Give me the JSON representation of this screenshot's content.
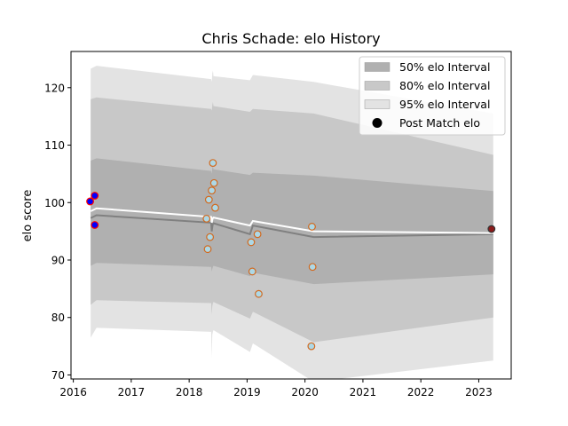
{
  "chart_data": {
    "type": "line",
    "title": "Chris Schade: elo History",
    "xlabel": "",
    "ylabel": "elo score",
    "xlim": [
      2015.96,
      2023.56
    ],
    "ylim": [
      69.3,
      126.3
    ],
    "x_ticks": [
      2016,
      2017,
      2018,
      2019,
      2020,
      2021,
      2022,
      2023
    ],
    "y_ticks": [
      70,
      80,
      90,
      100,
      110,
      120
    ],
    "grid": false,
    "legend_position": "top-right",
    "legend": [
      {
        "label": "50% elo Interval",
        "kind": "band",
        "color": "#b0b0b0"
      },
      {
        "label": "80% elo Interval",
        "kind": "band",
        "color": "#c8c8c8"
      },
      {
        "label": "95% elo Interval",
        "kind": "band",
        "color": "#e3e3e3"
      },
      {
        "label": "Post Match elo",
        "kind": "marker",
        "color": "#000000"
      }
    ],
    "bands": [
      {
        "name": "95% elo Interval",
        "color": "#e3e3e3",
        "x": [
          2016.3,
          2016.4,
          2018.38,
          2018.39,
          2018.4,
          2018.41,
          2018.42,
          2019.05,
          2019.1,
          2020.15,
          2023.25
        ],
        "upper": [
          123.3,
          123.8,
          121.5,
          121.0,
          122.5,
          123.0,
          122.0,
          121.3,
          122.2,
          121.0,
          115.5
        ],
        "lower": [
          76.5,
          78.2,
          77.5,
          73.0,
          77.0,
          77.5,
          77.8,
          74.0,
          75.5,
          68.8,
          72.5
        ]
      },
      {
        "name": "80% elo Interval",
        "color": "#c8c8c8",
        "x": [
          2016.3,
          2016.4,
          2018.38,
          2018.39,
          2018.4,
          2018.41,
          2018.42,
          2019.05,
          2019.1,
          2020.15,
          2023.25
        ],
        "upper": [
          118.0,
          118.3,
          116.3,
          116.0,
          117.0,
          117.5,
          116.8,
          115.8,
          116.3,
          115.5,
          108.3
        ],
        "lower": [
          82.2,
          83.0,
          82.5,
          80.5,
          82.0,
          82.5,
          82.7,
          79.8,
          81.0,
          75.7,
          80.0
        ]
      },
      {
        "name": "50% elo Interval",
        "color": "#b0b0b0",
        "x": [
          2016.3,
          2016.4,
          2018.38,
          2018.39,
          2018.4,
          2018.41,
          2018.42,
          2019.05,
          2019.1,
          2020.15,
          2023.25
        ],
        "upper": [
          107.3,
          107.7,
          105.5,
          105.0,
          106.0,
          106.3,
          105.8,
          104.8,
          105.2,
          104.7,
          102.0
        ],
        "lower": [
          89.0,
          89.5,
          88.8,
          88.0,
          88.5,
          88.8,
          89.0,
          87.2,
          87.8,
          85.8,
          87.5
        ]
      }
    ],
    "lines": [
      {
        "name": "median",
        "color": "#808080",
        "x": [
          2016.3,
          2016.4,
          2018.38,
          2018.39,
          2018.4,
          2018.41,
          2018.42,
          2019.05,
          2019.1,
          2020.15,
          2023.25
        ],
        "y": [
          97.3,
          97.8,
          96.5,
          95.0,
          95.8,
          96.3,
          96.4,
          94.5,
          96.0,
          94.0,
          94.5
        ]
      },
      {
        "name": "mean",
        "color": "#ffffff",
        "x": [
          2016.3,
          2016.4,
          2018.38,
          2018.39,
          2018.4,
          2018.41,
          2018.42,
          2019.05,
          2019.1,
          2020.15,
          2023.25
        ],
        "y": [
          98.5,
          99.0,
          97.5,
          96.5,
          97.0,
          97.3,
          97.4,
          96.0,
          96.8,
          95.0,
          94.7
        ]
      }
    ],
    "points": [
      {
        "x": 2016.29,
        "y": 100.2,
        "face": "#0000ff",
        "edge": "#ff0000"
      },
      {
        "x": 2016.37,
        "y": 101.2,
        "face": "#0000ff",
        "edge": "#ff0000"
      },
      {
        "x": 2016.37,
        "y": 96.1,
        "face": "#0000ff",
        "edge": "#ff0000"
      },
      {
        "x": 2018.3,
        "y": 97.2,
        "face": "#add8e6",
        "edge": "#d2691e"
      },
      {
        "x": 2018.34,
        "y": 100.5,
        "face": "#add8e6",
        "edge": "#d2691e"
      },
      {
        "x": 2018.36,
        "y": 94.0,
        "face": "#add8e6",
        "edge": "#d2691e"
      },
      {
        "x": 2018.32,
        "y": 91.9,
        "face": "#add8e6",
        "edge": "#d2691e"
      },
      {
        "x": 2018.39,
        "y": 102.1,
        "face": "#add8e6",
        "edge": "#d2691e"
      },
      {
        "x": 2018.41,
        "y": 106.9,
        "face": "#add8e6",
        "edge": "#d2691e"
      },
      {
        "x": 2018.43,
        "y": 103.4,
        "face": "#add8e6",
        "edge": "#d2691e"
      },
      {
        "x": 2018.45,
        "y": 99.1,
        "face": "#add8e6",
        "edge": "#d2691e"
      },
      {
        "x": 2019.07,
        "y": 93.1,
        "face": "#add8e6",
        "edge": "#d2691e"
      },
      {
        "x": 2019.09,
        "y": 88.0,
        "face": "#add8e6",
        "edge": "#d2691e"
      },
      {
        "x": 2019.18,
        "y": 94.5,
        "face": "#add8e6",
        "edge": "#d2691e"
      },
      {
        "x": 2019.2,
        "y": 84.1,
        "face": "#add8e6",
        "edge": "#d2691e"
      },
      {
        "x": 2020.12,
        "y": 95.8,
        "face": "#add8e6",
        "edge": "#d2691e"
      },
      {
        "x": 2020.13,
        "y": 88.8,
        "face": "#add8e6",
        "edge": "#d2691e"
      },
      {
        "x": 2020.11,
        "y": 75.0,
        "face": "#add8e6",
        "edge": "#d2691e"
      },
      {
        "x": 2023.22,
        "y": 95.4,
        "face": "#8b1a1a",
        "edge": "#333333"
      }
    ]
  }
}
